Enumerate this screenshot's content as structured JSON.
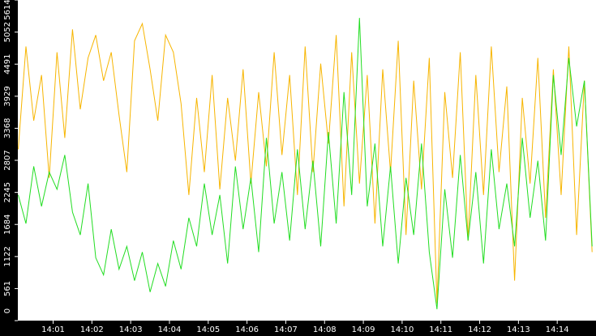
{
  "chart_data": {
    "type": "line",
    "x": [
      0.1,
      0.3,
      0.5,
      0.7,
      0.9,
      1.1,
      1.3,
      1.5,
      1.7,
      1.9,
      2.1,
      2.3,
      2.5,
      2.7,
      2.9,
      3.1,
      3.3,
      3.5,
      3.7,
      3.9,
      4.1,
      4.3,
      4.5,
      4.7,
      4.9,
      5.1,
      5.3,
      5.5,
      5.7,
      5.9,
      6.1,
      6.3,
      6.5,
      6.7,
      6.9,
      7.1,
      7.3,
      7.5,
      7.7,
      7.9,
      8.1,
      8.3,
      8.5,
      8.7,
      8.9,
      9.1,
      9.3,
      9.5,
      9.7,
      9.9,
      10.1,
      10.3,
      10.5,
      10.7,
      10.9,
      11.1,
      11.3,
      11.5,
      11.7,
      11.9,
      12.1,
      12.3,
      12.5,
      12.7,
      12.9,
      13.1,
      13.3,
      13.5,
      13.7,
      13.9,
      14.1,
      14.3,
      14.5,
      14.7,
      14.9
    ],
    "series": [
      {
        "color": "#f7b500",
        "values": [
          3000,
          4800,
          3500,
          4300,
          2500,
          4700,
          3200,
          5100,
          3700,
          4600,
          5000,
          4200,
          4700,
          3600,
          2600,
          4900,
          5200,
          4400,
          3500,
          5000,
          4700,
          3800,
          2200,
          3900,
          2600,
          4300,
          2300,
          3900,
          2800,
          4400,
          2400,
          4000,
          2700,
          4700,
          2900,
          4300,
          2200,
          4800,
          2600,
          4500,
          3100,
          5000,
          2000,
          4700,
          2400,
          4300,
          1700,
          4400,
          2600,
          4900,
          1500,
          4200,
          2300,
          4600,
          300,
          4000,
          2500,
          4700,
          1400,
          4300,
          2200,
          4800,
          2600,
          4100,
          700,
          3900,
          2400,
          4600,
          1800,
          4400,
          2200,
          4800,
          1500,
          4200,
          1200
        ]
      },
      {
        "color": "#22dd22",
        "values": [
          2200,
          1700,
          2700,
          2000,
          2600,
          2300,
          2900,
          1900,
          1500,
          2400,
          1100,
          800,
          1600,
          900,
          1300,
          700,
          1200,
          500,
          1000,
          600,
          1400,
          900,
          1800,
          1300,
          2400,
          1500,
          2200,
          1000,
          2700,
          1600,
          2500,
          1200,
          3200,
          1700,
          2600,
          1400,
          3000,
          1600,
          2800,
          1300,
          3300,
          1700,
          4000,
          2200,
          5300,
          2000,
          3100,
          1300,
          2700,
          1000,
          2500,
          1500,
          3100,
          1200,
          200,
          2300,
          1100,
          2900,
          1400,
          2600,
          1000,
          3000,
          1600,
          2400,
          1300,
          3200,
          1800,
          2800,
          1400,
          4300,
          2900,
          4600,
          3400,
          4200,
          1300
        ]
      }
    ],
    "xlim": [
      0.09,
      15
    ],
    "xticks": [
      {
        "value": 1,
        "label": "14:01"
      },
      {
        "value": 2,
        "label": "14:02"
      },
      {
        "value": 3,
        "label": "14:03"
      },
      {
        "value": 4,
        "label": "14:04"
      },
      {
        "value": 5,
        "label": "14:05"
      },
      {
        "value": 6,
        "label": "14:06"
      },
      {
        "value": 7,
        "label": "14:07"
      },
      {
        "value": 8,
        "label": "14:08"
      },
      {
        "value": 9,
        "label": "14:09"
      },
      {
        "value": 10,
        "label": "14:10"
      },
      {
        "value": 11,
        "label": "14:11"
      },
      {
        "value": 12,
        "label": "14:12"
      },
      {
        "value": 13,
        "label": "14:13"
      },
      {
        "value": 14,
        "label": "14:14"
      }
    ],
    "ylim": [
      0,
      5614
    ],
    "yticks": [
      0,
      561,
      1122,
      1684,
      2245,
      2807,
      3368,
      3929,
      4491,
      5052,
      5614
    ]
  }
}
